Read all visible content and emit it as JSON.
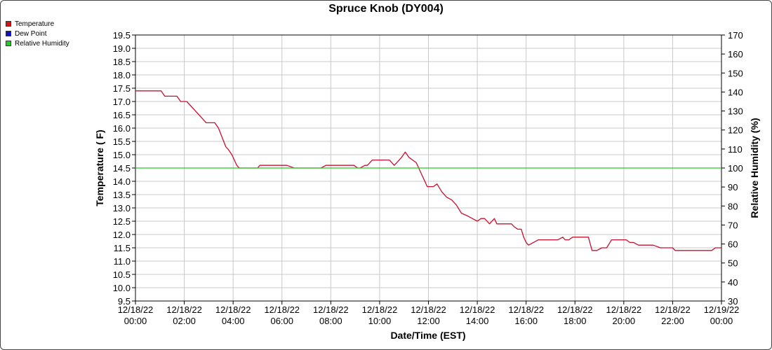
{
  "chart_data": {
    "type": "line",
    "title": "Spruce Knob (DY004)",
    "xlabel": "Date/Time (EST)",
    "ylabel_left": "Temperature ( F)",
    "ylabel_right": "Relative Humidity (%)",
    "ylim_left": [
      9.5,
      19.5
    ],
    "ylim_right": [
      30,
      170
    ],
    "xlim_hours": [
      0,
      24
    ],
    "grid": true,
    "legend_position": "top-left",
    "legend": [
      {
        "name": "Temperature",
        "color": "#dd1111"
      },
      {
        "name": "Dew Point",
        "color": "#1111cc"
      },
      {
        "name": "Relative Humidity",
        "color": "#22cc22"
      }
    ],
    "left_ticks": [
      "9.5",
      "10.0",
      "10.5",
      "11.0",
      "11.5",
      "12.0",
      "12.5",
      "13.0",
      "13.5",
      "14.0",
      "14.5",
      "15.0",
      "15.5",
      "16.0",
      "16.5",
      "17.0",
      "17.5",
      "18.0",
      "18.5",
      "19.0",
      "19.5"
    ],
    "right_ticks": [
      "30",
      "40",
      "50",
      "60",
      "70",
      "80",
      "90",
      "100",
      "110",
      "120",
      "130",
      "140",
      "150",
      "160",
      "170"
    ],
    "x_ticks": [
      {
        "hour": 0,
        "line1": "12/18/22",
        "line2": "00:00"
      },
      {
        "hour": 2,
        "line1": "12/18/22",
        "line2": "02:00"
      },
      {
        "hour": 4,
        "line1": "12/18/22",
        "line2": "04:00"
      },
      {
        "hour": 6,
        "line1": "12/18/22",
        "line2": "06:00"
      },
      {
        "hour": 8,
        "line1": "12/18/22",
        "line2": "08:00"
      },
      {
        "hour": 10,
        "line1": "12/18/22",
        "line2": "10:00"
      },
      {
        "hour": 12,
        "line1": "12/18/22",
        "line2": "12:00"
      },
      {
        "hour": 14,
        "line1": "12/18/22",
        "line2": "14:00"
      },
      {
        "hour": 16,
        "line1": "12/18/22",
        "line2": "16:00"
      },
      {
        "hour": 18,
        "line1": "12/18/22",
        "line2": "18:00"
      },
      {
        "hour": 20,
        "line1": "12/18/22",
        "line2": "20:00"
      },
      {
        "hour": 22,
        "line1": "12/18/22",
        "line2": "22:00"
      },
      {
        "hour": 24,
        "line1": "12/19/22",
        "line2": "00:00"
      }
    ],
    "series": [
      {
        "name": "Temperature",
        "axis": "left",
        "color": "#c8102e",
        "x_hours": [
          0,
          1.05,
          1.2,
          1.7,
          1.85,
          2.1,
          2.9,
          3.25,
          3.4,
          3.7,
          3.8,
          3.95,
          4.1,
          4.15,
          4.25,
          4.4,
          4.6,
          4.8,
          5.0,
          5.1,
          5.3,
          5.5,
          6.0,
          6.1,
          6.2,
          6.5,
          7.5,
          7.6,
          7.8,
          8.0,
          8.5,
          8.7,
          8.95,
          9.1,
          9.2,
          9.4,
          9.5,
          9.7,
          9.9,
          10.05,
          10.2,
          10.4,
          10.6,
          10.7,
          10.9,
          11.05,
          11.2,
          11.5,
          11.6,
          11.75,
          11.95,
          12.2,
          12.35,
          12.55,
          12.75,
          12.95,
          13.15,
          13.35,
          13.6,
          13.8,
          14.0,
          14.15,
          14.3,
          14.5,
          14.7,
          14.8,
          15.0,
          15.2,
          15.4,
          15.5,
          15.65,
          15.8,
          15.9,
          16.0,
          16.1,
          16.5,
          16.9,
          17.0,
          17.1,
          17.2,
          17.3,
          17.5,
          17.6,
          17.75,
          17.9,
          18.1,
          18.3,
          18.55,
          18.7,
          18.9,
          19.1,
          19.3,
          19.5,
          19.8,
          20.1,
          20.25,
          20.4,
          20.6,
          20.8,
          21.0,
          21.2,
          21.5,
          21.6,
          21.8,
          22.0,
          22.1,
          22.3,
          22.6,
          22.8,
          23.0,
          23.2,
          23.45,
          23.6,
          23.75,
          23.9,
          24.0
        ],
        "values": [
          17.4,
          17.4,
          17.2,
          17.2,
          17.0,
          17.0,
          16.2,
          16.2,
          16.0,
          15.3,
          15.2,
          15.0,
          14.7,
          14.6,
          14.5,
          14.5,
          14.5,
          14.5,
          14.5,
          14.6,
          14.6,
          14.6,
          14.6,
          14.6,
          14.6,
          14.5,
          14.5,
          14.5,
          14.6,
          14.6,
          14.6,
          14.6,
          14.6,
          14.5,
          14.5,
          14.6,
          14.6,
          14.8,
          14.8,
          14.8,
          14.8,
          14.8,
          14.6,
          14.7,
          14.9,
          15.1,
          14.9,
          14.7,
          14.5,
          14.2,
          13.8,
          13.8,
          13.9,
          13.6,
          13.4,
          13.3,
          13.1,
          12.8,
          12.7,
          12.6,
          12.5,
          12.6,
          12.6,
          12.4,
          12.6,
          12.4,
          12.4,
          12.4,
          12.4,
          12.3,
          12.2,
          12.2,
          11.9,
          11.7,
          11.6,
          11.8,
          11.8,
          11.8,
          11.8,
          11.8,
          11.8,
          11.9,
          11.8,
          11.8,
          11.9,
          11.9,
          11.9,
          11.9,
          11.4,
          11.4,
          11.5,
          11.5,
          11.8,
          11.8,
          11.8,
          11.7,
          11.7,
          11.6,
          11.6,
          11.6,
          11.6,
          11.5,
          11.5,
          11.5,
          11.5,
          11.4,
          11.4,
          11.4,
          11.4,
          11.4,
          11.4,
          11.4,
          11.4,
          11.5,
          11.5,
          11.5
        ]
      },
      {
        "name": "Relative Humidity",
        "axis": "right",
        "color": "#22cc22",
        "x_hours": [
          0,
          24
        ],
        "values": [
          100,
          100
        ]
      }
    ]
  }
}
